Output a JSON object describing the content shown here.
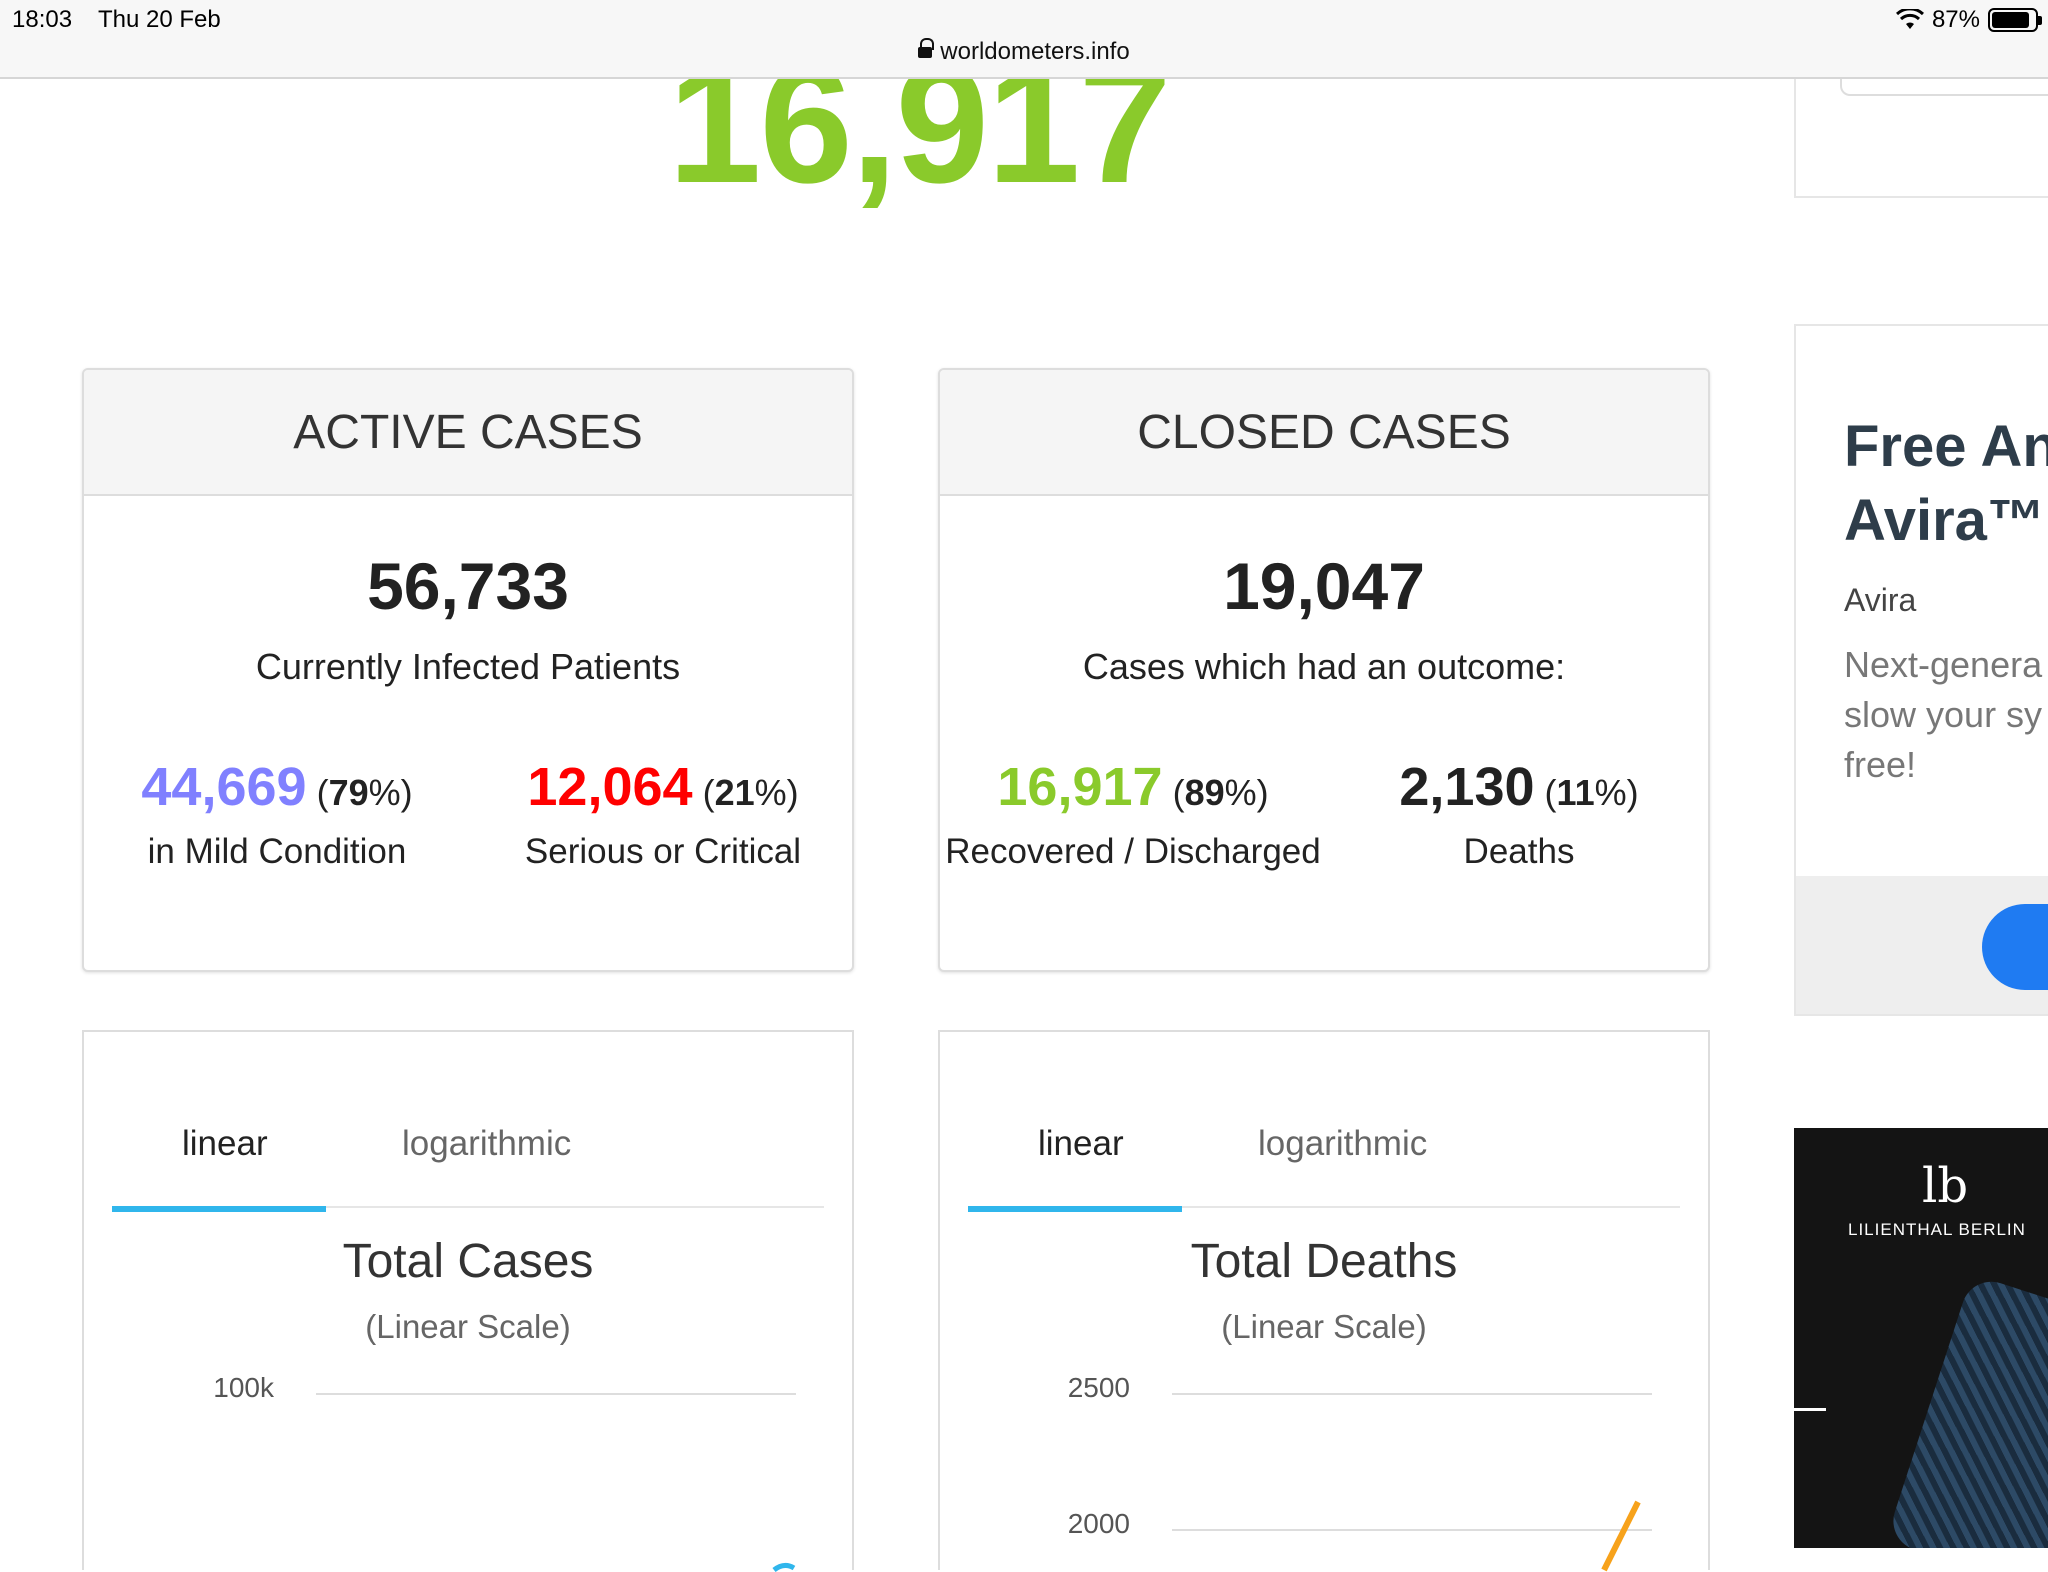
{
  "status_bar": {
    "time": "18:03",
    "date": "Thu 20 Feb",
    "battery": "87%",
    "battery_level": 0.87
  },
  "url_bar": {
    "url": "worldometers.info"
  },
  "recovered_total": "16,917",
  "active_cases": {
    "title": "ACTIVE CASES",
    "total": "56,733",
    "total_label": "Currently Infected Patients",
    "mild": {
      "value": "44,669",
      "pct": "79",
      "label": "in Mild Condition",
      "color": "#8080FF"
    },
    "serious": {
      "value": "12,064",
      "pct": "21",
      "label": "Serious or Critical",
      "color": "#FF0000"
    }
  },
  "closed_cases": {
    "title": "CLOSED CASES",
    "total": "19,047",
    "total_label": "Cases which had an outcome:",
    "recovered": {
      "value": "16,917",
      "pct": "89",
      "label": "Recovered / Discharged",
      "color": "#8ACA2B"
    },
    "deaths": {
      "value": "2,130",
      "pct": "11",
      "label": "Deaths",
      "color": "#222222"
    }
  },
  "chart_tabs": {
    "linear": "linear",
    "logarithmic": "logarithmic"
  },
  "chart_data": [
    {
      "type": "line",
      "title": "Total Cases",
      "subtitle": "(Linear Scale)",
      "y_ticks": [
        "100k"
      ],
      "series_color": "#30B6EC"
    },
    {
      "type": "line",
      "title": "Total Deaths",
      "subtitle": "(Linear Scale)",
      "y_ticks": [
        "2500",
        "2000"
      ],
      "series_color": "#F7A21B"
    }
  ],
  "ads": {
    "avira": {
      "title_line1": "Free An",
      "title_line2": "Avira™",
      "brand": "Avira",
      "desc_line1": "Next-genera",
      "desc_line2": "slow your sy",
      "desc_line3": "free!"
    },
    "lilienthal": {
      "logo": "lb",
      "brand": "LILIENTHAL BERLIN"
    }
  }
}
